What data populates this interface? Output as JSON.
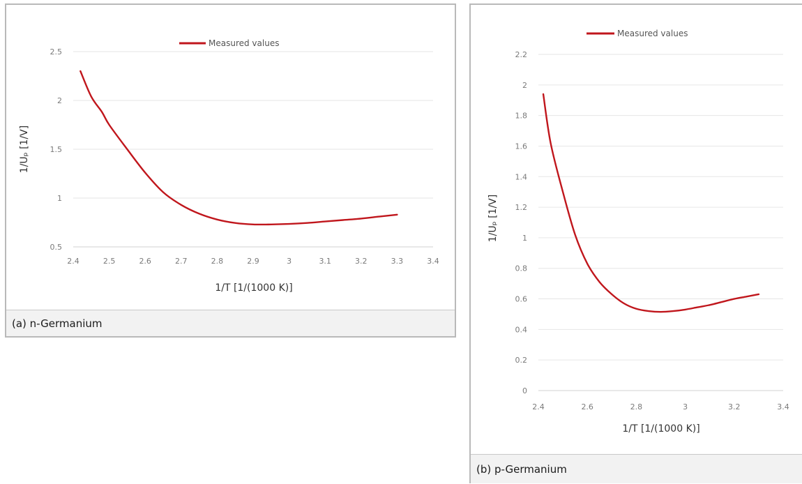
{
  "chart_data": [
    {
      "type": "line",
      "caption": "(a) n-Germanium",
      "xlabel": "1/T  [1/(1000 K)]",
      "ylabel": "1/Uₚ  [1/V]",
      "xlim": [
        2.4,
        3.4
      ],
      "ylim": [
        0.5,
        2.5
      ],
      "xticks": [
        "2.4",
        "2.5",
        "2.6",
        "2.7",
        "2.8",
        "2.9",
        "3",
        "3.1",
        "3.2",
        "3.3",
        "3.4"
      ],
      "yticks": [
        "0.5",
        "1",
        "1.5",
        "2",
        "2.5"
      ],
      "grid": true,
      "legend": "top-center",
      "series": [
        {
          "name": "Measured values",
          "color": "#c0161c",
          "x": [
            2.42,
            2.45,
            2.48,
            2.5,
            2.55,
            2.6,
            2.65,
            2.7,
            2.75,
            2.8,
            2.85,
            2.9,
            2.95,
            3.0,
            3.05,
            3.1,
            3.15,
            3.2,
            3.25,
            3.3
          ],
          "y": [
            2.3,
            2.04,
            1.88,
            1.75,
            1.5,
            1.26,
            1.06,
            0.93,
            0.84,
            0.78,
            0.745,
            0.73,
            0.73,
            0.735,
            0.745,
            0.76,
            0.775,
            0.79,
            0.81,
            0.83
          ]
        }
      ]
    },
    {
      "type": "line",
      "caption": "(b) p-Germanium",
      "xlabel": "1/T  [1/(1000 K)]",
      "ylabel": "1/Uₚ  [1/V]",
      "xlim": [
        2.4,
        3.4
      ],
      "ylim": [
        0,
        2.2
      ],
      "xticks": [
        "2.4",
        "2.6",
        "2.8",
        "3",
        "3.2",
        "3.4"
      ],
      "yticks": [
        "0",
        "0.2",
        "0.4",
        "0.6",
        "0.8",
        "1",
        "1.2",
        "1.4",
        "1.6",
        "1.8",
        "2",
        "2.2"
      ],
      "grid": true,
      "legend": "top-center",
      "series": [
        {
          "name": "Measured values",
          "color": "#c0161c",
          "x": [
            2.42,
            2.45,
            2.5,
            2.55,
            2.6,
            2.65,
            2.7,
            2.75,
            2.8,
            2.85,
            2.9,
            2.95,
            3.0,
            3.05,
            3.1,
            3.15,
            3.2,
            3.25,
            3.3
          ],
          "y": [
            1.94,
            1.62,
            1.3,
            1.02,
            0.83,
            0.71,
            0.63,
            0.57,
            0.535,
            0.52,
            0.515,
            0.52,
            0.53,
            0.545,
            0.56,
            0.58,
            0.6,
            0.615,
            0.63
          ]
        }
      ]
    }
  ]
}
